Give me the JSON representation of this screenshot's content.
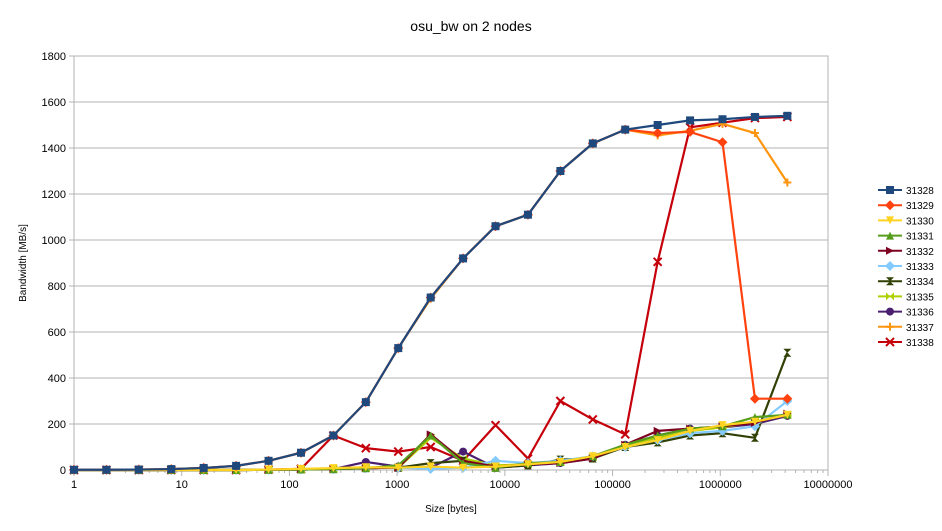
{
  "chart_data": {
    "type": "line",
    "title": "osu_bw on 2 nodes",
    "xlabel": "Size [bytes]",
    "ylabel": "Bandwidth [MB/s]",
    "xscale": "log",
    "xlim": [
      1,
      10000000
    ],
    "ylim": [
      0,
      1800
    ],
    "xticks": [
      "1",
      "10",
      "100",
      "1000",
      "10000",
      "100000",
      "1000000",
      "10000000"
    ],
    "yticks": [
      "0",
      "200",
      "400",
      "600",
      "800",
      "1000",
      "1200",
      "1400",
      "1600",
      "1800"
    ],
    "grid": "horizontal",
    "legend_position": "right",
    "x": [
      1,
      2,
      4,
      8,
      16,
      32,
      64,
      128,
      256,
      512,
      1024,
      2048,
      4096,
      8192,
      16384,
      32768,
      65536,
      131072,
      262144,
      524288,
      1048576,
      2097152,
      4194304
    ],
    "series": [
      {
        "name": "31328",
        "color": "#1f497d",
        "marker": "square",
        "values": [
          1,
          1,
          2,
          4,
          9,
          18,
          40,
          75,
          150,
          295,
          530,
          750,
          920,
          1060,
          1110,
          1300,
          1420,
          1480,
          1500,
          1520,
          1525,
          1535,
          1540
        ]
      },
      {
        "name": "31329",
        "color": "#ff420e",
        "marker": "diamond",
        "values": [
          1,
          1,
          2,
          4,
          9,
          18,
          40,
          75,
          150,
          295,
          530,
          750,
          920,
          1060,
          1110,
          1300,
          1420,
          1480,
          1465,
          1470,
          1425,
          310,
          310
        ]
      },
      {
        "name": "31330",
        "color": "#ffd320",
        "marker": "triangle-down",
        "values": [
          0,
          0,
          0,
          0,
          0,
          0,
          2,
          5,
          8,
          12,
          10,
          15,
          10,
          15,
          25,
          35,
          60,
          100,
          130,
          170,
          195,
          210,
          240
        ]
      },
      {
        "name": "31331",
        "color": "#579d1c",
        "marker": "triangle-up",
        "values": [
          0,
          0,
          0,
          0,
          0,
          0,
          1,
          2,
          4,
          8,
          20,
          150,
          30,
          10,
          30,
          35,
          60,
          110,
          150,
          180,
          190,
          230,
          240
        ]
      },
      {
        "name": "31332",
        "color": "#7e0021",
        "marker": "triangle-right",
        "values": [
          0,
          0,
          0,
          0,
          0,
          0,
          1,
          2,
          4,
          8,
          10,
          155,
          40,
          15,
          25,
          30,
          50,
          110,
          170,
          180,
          190,
          205,
          245
        ]
      },
      {
        "name": "31333",
        "color": "#83caff",
        "marker": "diamond",
        "values": [
          0,
          0,
          0,
          0,
          0,
          0,
          1,
          2,
          4,
          8,
          10,
          5,
          10,
          40,
          30,
          40,
          60,
          100,
          130,
          160,
          170,
          190,
          300
        ]
      },
      {
        "name": "31334",
        "color": "#314004",
        "marker": "bowtie",
        "values": [
          0,
          0,
          0,
          0,
          0,
          0,
          1,
          2,
          4,
          8,
          10,
          30,
          40,
          10,
          20,
          45,
          50,
          100,
          120,
          150,
          160,
          140,
          510
        ]
      },
      {
        "name": "31335",
        "color": "#aecf00",
        "marker": "bowtie-vertical",
        "values": [
          0,
          0,
          0,
          0,
          0,
          0,
          1,
          2,
          4,
          8,
          10,
          140,
          50,
          20,
          25,
          35,
          55,
          105,
          140,
          170,
          185,
          210,
          240
        ]
      },
      {
        "name": "31336",
        "color": "#4b1f6f",
        "marker": "circle",
        "values": [
          0,
          0,
          0,
          0,
          0,
          0,
          1,
          2,
          4,
          35,
          15,
          10,
          80,
          10,
          20,
          30,
          50,
          110,
          150,
          180,
          185,
          200,
          235
        ]
      },
      {
        "name": "31337",
        "color": "#ff950e",
        "marker": "plus",
        "values": [
          1,
          1,
          2,
          4,
          9,
          18,
          40,
          75,
          150,
          295,
          530,
          745,
          920,
          1060,
          1110,
          1300,
          1420,
          1480,
          1455,
          1475,
          1505,
          1465,
          1250
        ]
      },
      {
        "name": "31338",
        "color": "#c5000b",
        "marker": "x",
        "values": [
          0,
          0,
          0,
          0,
          0,
          0,
          2,
          5,
          150,
          95,
          80,
          100,
          40,
          195,
          50,
          300,
          220,
          155,
          905,
          1490,
          1510,
          1530,
          1535
        ]
      }
    ]
  }
}
